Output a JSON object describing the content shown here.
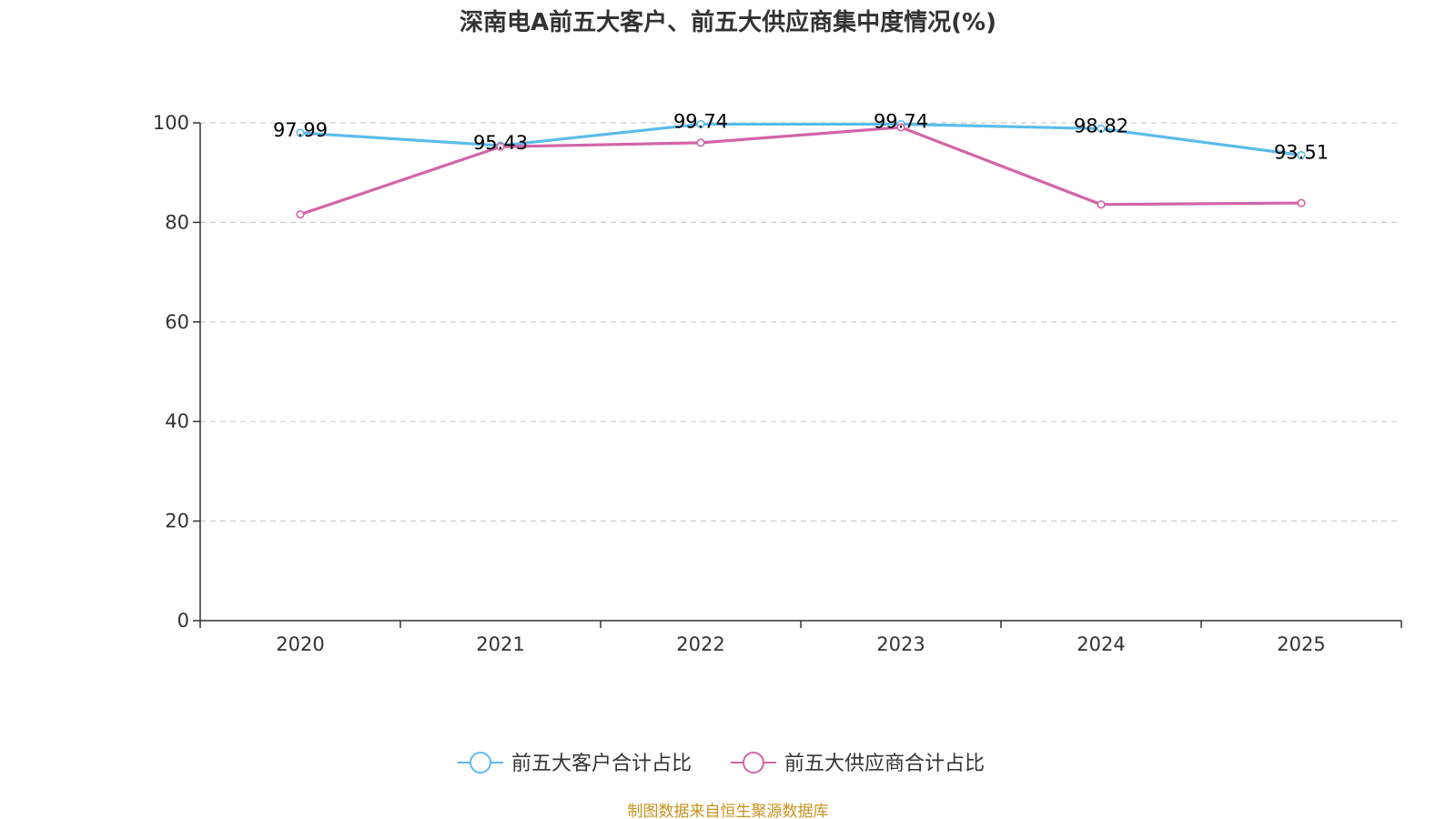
{
  "chart_data": {
    "type": "line",
    "title": "深南电A前五大客户、前五大供应商集中度情况(%)",
    "categories": [
      "2020",
      "2021",
      "2022",
      "2023",
      "2024",
      "2025"
    ],
    "ylim": [
      0,
      100
    ],
    "yticks": [
      0,
      20,
      40,
      60,
      80,
      100
    ],
    "ytick_labels": [
      "0",
      "20",
      "40",
      "60",
      "80",
      "100"
    ],
    "grid": true,
    "legend_position": "bottom-center",
    "series": [
      {
        "name": "前五大客户合计占比",
        "color": "#5bbcea",
        "values": [
          97.99,
          95.43,
          99.74,
          99.74,
          98.82,
          93.51
        ],
        "labels": [
          "97.99",
          "95.43",
          "99.74",
          "99.74",
          "98.82",
          "93.51"
        ]
      },
      {
        "name": "前五大供应商合计占比",
        "color": "#d264a8",
        "values": [
          81.6,
          95.2,
          96.0,
          99.1,
          83.6,
          83.9
        ]
      }
    ],
    "source": "制图数据来自恒生聚源数据库",
    "source_color": "#c8921e"
  }
}
